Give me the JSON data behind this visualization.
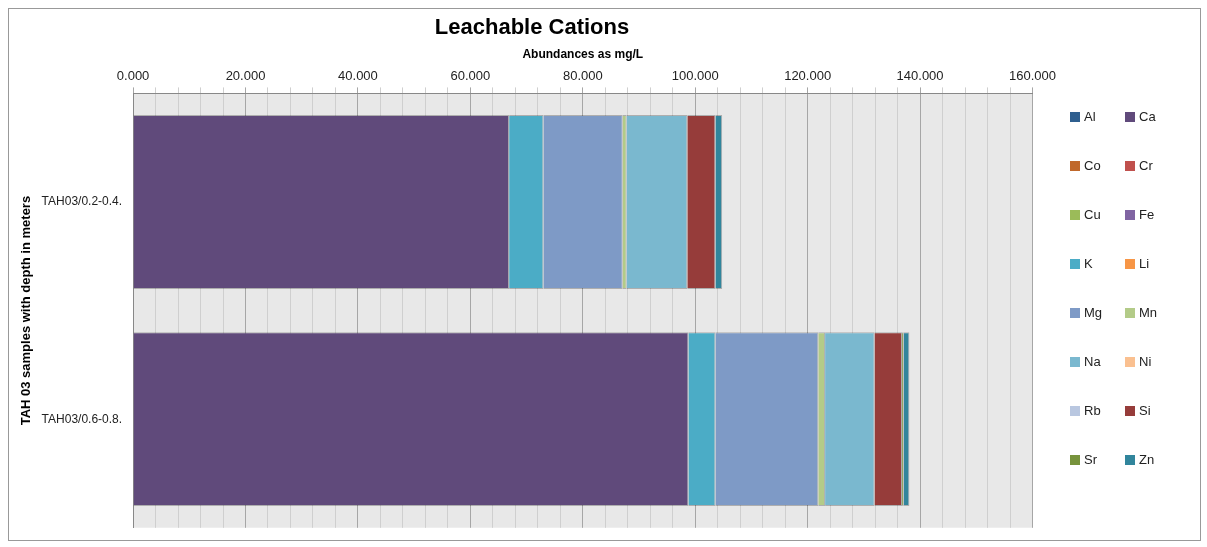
{
  "chart_data": {
    "type": "bar",
    "orientation": "horizontal",
    "stacked": true,
    "title": "Leachable Cations",
    "xlabel": "Abundances as mg/L",
    "ylabel": "TAH 03 samples with depth in meters",
    "categories": [
      "TAH03/0.2-0.4.",
      "TAH03/0.6-0.8."
    ],
    "series": [
      {
        "name": "Al",
        "color": "#2f5f8f",
        "values": [
          0,
          0
        ]
      },
      {
        "name": "Ca",
        "color": "#604a7b",
        "values": [
          66.9,
          98.8
        ]
      },
      {
        "name": "Co",
        "color": "#c0682b",
        "values": [
          0,
          0
        ]
      },
      {
        "name": "Cr",
        "color": "#c0504d",
        "values": [
          0,
          0
        ]
      },
      {
        "name": "Cu",
        "color": "#9bbb59",
        "values": [
          0,
          0
        ]
      },
      {
        "name": "Fe",
        "color": "#8064a2",
        "values": [
          0,
          0
        ]
      },
      {
        "name": "K",
        "color": "#4bacc6",
        "values": [
          6.1,
          4.8
        ]
      },
      {
        "name": "Li",
        "color": "#f79646",
        "values": [
          0,
          0
        ]
      },
      {
        "name": "Mg",
        "color": "#7e9ac6",
        "values": [
          14.1,
          18.3
        ]
      },
      {
        "name": "Mn",
        "color": "#b3cb88",
        "values": [
          0.7,
          1.2
        ]
      },
      {
        "name": "Na",
        "color": "#7ab8cf",
        "values": [
          10.8,
          8.8
        ]
      },
      {
        "name": "Ni",
        "color": "#fac090",
        "values": [
          0,
          0
        ]
      },
      {
        "name": "Rb",
        "color": "#b9c7e0",
        "values": [
          0,
          0
        ]
      },
      {
        "name": "Si",
        "color": "#963c3a",
        "values": [
          5.0,
          4.9
        ]
      },
      {
        "name": "Sr",
        "color": "#77933c",
        "values": [
          0,
          0.3
        ]
      },
      {
        "name": "Zn",
        "color": "#31859c",
        "values": [
          1.2,
          1.0
        ]
      }
    ],
    "xlim": [
      0,
      160
    ],
    "xticks": [
      {
        "value": 0,
        "label": "0.000"
      },
      {
        "value": 4,
        "label": null
      },
      {
        "value": 8,
        "label": null
      },
      {
        "value": 12,
        "label": null
      },
      {
        "value": 16,
        "label": null
      },
      {
        "value": 20,
        "label": "20.000"
      },
      {
        "value": 24,
        "label": null
      },
      {
        "value": 28,
        "label": null
      },
      {
        "value": 32,
        "label": null
      },
      {
        "value": 36,
        "label": null
      },
      {
        "value": 40,
        "label": "40.000"
      },
      {
        "value": 44,
        "label": null
      },
      {
        "value": 48,
        "label": null
      },
      {
        "value": 52,
        "label": null
      },
      {
        "value": 56,
        "label": null
      },
      {
        "value": 60,
        "label": "60.000"
      },
      {
        "value": 64,
        "label": null
      },
      {
        "value": 68,
        "label": null
      },
      {
        "value": 72,
        "label": null
      },
      {
        "value": 76,
        "label": null
      },
      {
        "value": 80,
        "label": "80.000"
      },
      {
        "value": 84,
        "label": null
      },
      {
        "value": 88,
        "label": null
      },
      {
        "value": 92,
        "label": null
      },
      {
        "value": 96,
        "label": null
      },
      {
        "value": 100,
        "label": "100.000"
      },
      {
        "value": 104,
        "label": null
      },
      {
        "value": 108,
        "label": null
      },
      {
        "value": 112,
        "label": null
      },
      {
        "value": 116,
        "label": null
      },
      {
        "value": 120,
        "label": "120.000"
      },
      {
        "value": 124,
        "label": null
      },
      {
        "value": 128,
        "label": null
      },
      {
        "value": 132,
        "label": null
      },
      {
        "value": 136,
        "label": null
      },
      {
        "value": 140,
        "label": "140.000"
      },
      {
        "value": 144,
        "label": null
      },
      {
        "value": 148,
        "label": null
      },
      {
        "value": 152,
        "label": null
      },
      {
        "value": 156,
        "label": null
      },
      {
        "value": 160,
        "label": "160.000"
      }
    ],
    "grid": "x",
    "legend": "right"
  }
}
